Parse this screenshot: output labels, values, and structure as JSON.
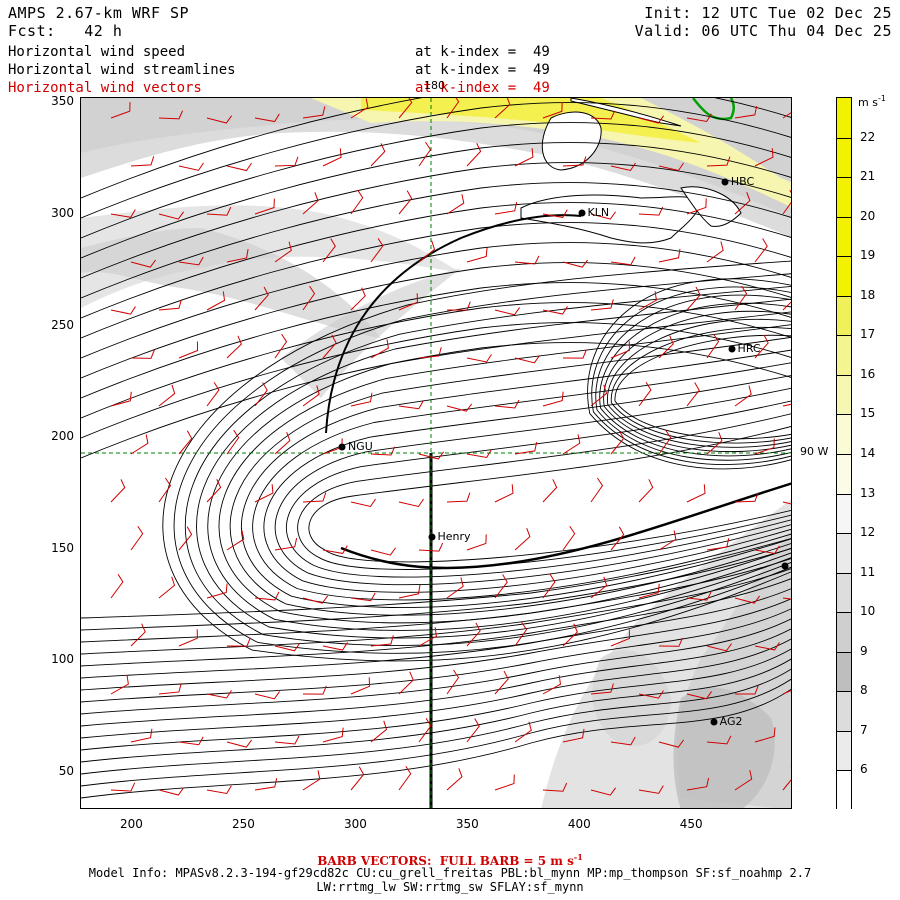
{
  "header": {
    "model": "AMPS 2.67-km WRF SP",
    "forecast": "Fcst:   42 h",
    "init": "Init: 12 UTC Tue 02 Dec 25",
    "valid": "Valid: 06 UTC Thu 04 Dec 25"
  },
  "fields": [
    {
      "name": "Horizontal wind speed",
      "level": "at k-index =  49",
      "color": "#000000"
    },
    {
      "name": "Horizontal wind streamlines",
      "level": "at k-index =  49",
      "color": "#000000"
    },
    {
      "name": "Horizontal wind vectors",
      "level": "at k-index =  49",
      "color": "#d00000"
    }
  ],
  "axes": {
    "x_ticks": [
      "200",
      "250",
      "300",
      "350",
      "400",
      "450"
    ],
    "y_ticks": [
      "350",
      "300",
      "250",
      "200",
      "150",
      "100",
      "50"
    ],
    "x_range": [
      177,
      495
    ],
    "y_range": [
      33,
      352
    ]
  },
  "graticule": {
    "meridian_label": "180",
    "parallel_label": "90 W"
  },
  "stations": [
    {
      "label": "HBC",
      "x": 465,
      "y": 314
    },
    {
      "label": "KLN",
      "x": 401,
      "y": 300
    },
    {
      "label": "HRC",
      "x": 468,
      "y": 239
    },
    {
      "label": "NGU",
      "x": 294,
      "y": 195
    },
    {
      "label": "Henry",
      "x": 334,
      "y": 155
    },
    {
      "label": "AG2",
      "x": 460,
      "y": 72
    },
    {
      "label": "",
      "x": 492,
      "y": 142
    }
  ],
  "colorbar": {
    "unit": "m s",
    "unit_sup": "-1",
    "levels": [
      "22",
      "21",
      "20",
      "19",
      "18",
      "17",
      "16",
      "15",
      "14",
      "13",
      "12",
      "11",
      "10",
      "9",
      "8",
      "7",
      "6"
    ],
    "colors": [
      "#f2f200",
      "#f2f200",
      "#f2f200",
      "#f2f200",
      "#f2f200",
      "#f0f05a",
      "#f4f490",
      "#f7f7b4",
      "#fafad4",
      "#fbfbe8",
      "#f6f6f6",
      "#eaeaea",
      "#dddddd",
      "#cfcfcf",
      "#bebebe",
      "#dcdcdc",
      "#ebebeb",
      "#ffffff"
    ]
  },
  "footer": {
    "barb_note": "BARB VECTORS:  FULL BARB = 5 m s",
    "barb_sup": "-1",
    "model_info": "Model Info: MPASv8.2.3-194-gf29cd82c CU:cu_grell_freitas PBL:bl_mynn MP:mp_thompson SF:sf_noahmp 2.7",
    "model_info2": "LW:rrtmg_lw SW:rrtmg_sw SFLAY:sf_mynn"
  }
}
